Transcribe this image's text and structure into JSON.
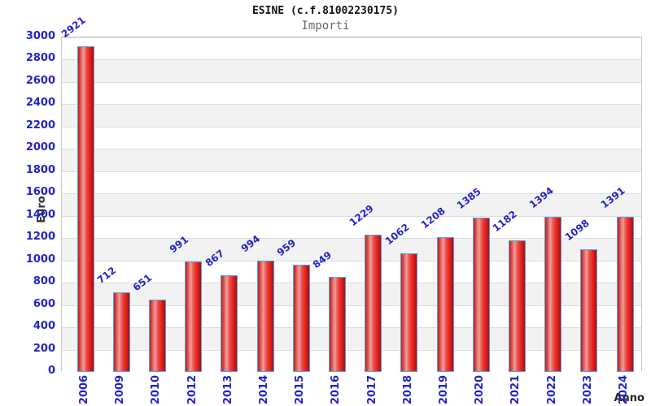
{
  "chart": {
    "title": "ESINE (c.f.81002230175)",
    "subtitle": "Importi",
    "ylabel": "Euro",
    "xlabel": "Anno"
  },
  "chart_data": {
    "type": "bar",
    "title": "ESINE (c.f.81002230175)",
    "subtitle": "Importi",
    "xlabel": "Anno",
    "ylabel": "Euro",
    "categories": [
      "2006",
      "2009",
      "2010",
      "2012",
      "2013",
      "2014",
      "2015",
      "2016",
      "2017",
      "2018",
      "2019",
      "2020",
      "2021",
      "2022",
      "2023",
      "2024"
    ],
    "values": [
      2921,
      712,
      651,
      991,
      867,
      994,
      959,
      849,
      1229,
      1062,
      1208,
      1385,
      1182,
      1394,
      1098,
      1391
    ],
    "ylim": [
      0,
      3000
    ],
    "ytick_step": 200,
    "grid": "horizontal gridlines with alternating white/gray bands",
    "legend": "none",
    "colors": {
      "bar_fill": "#e1201c",
      "bar_highlight": "#ef9e9a",
      "bar_border": "#58a0dc",
      "tick_label": "#2323c8",
      "value_label": "#2323c8",
      "band_gray": "#f2f2f2",
      "gridline": "#dcdcdc",
      "plot_border": "#c9c9c9",
      "title_color": "#111111",
      "subtitle_color": "#666666"
    }
  }
}
